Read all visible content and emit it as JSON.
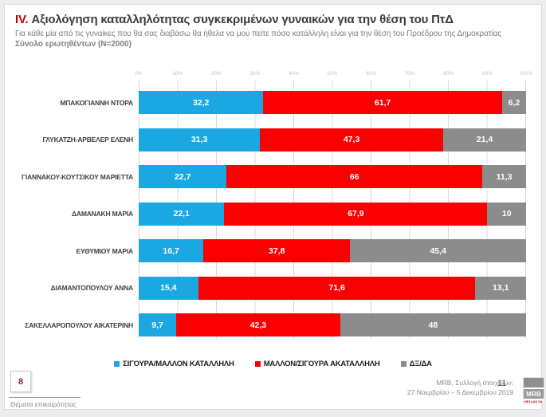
{
  "title": {
    "roman": "IV.",
    "text": "Αξιολόγηση καταλληλότητας συγκεκριμένων γυναικών για την θέση του ΠτΔ"
  },
  "subtitle": "Για κάθε μία από τις γυναίκες που θα σας διαβάσω θα ήθελα να μου πείτε πόσο κατάλληλη είναι για την θέση του Προέδρου της Δημοκρατίας",
  "base_line": "Σύνολο ερωτηθέντων (N=2000)",
  "colors": {
    "suitable_blue": "#1BA7E1",
    "unsuitable_red": "#FB0000",
    "dk_gray": "#8C8C8C",
    "accent_red": "#C00000",
    "grid_gray": "#D9D9D9"
  },
  "chart_data": {
    "type": "bar",
    "orientation": "horizontal",
    "stacked": true,
    "grid": true,
    "legend_position": "bottom",
    "xlim": [
      0,
      100
    ],
    "x_ticks": [
      "0%",
      "10%",
      "20%",
      "30%",
      "40%",
      "50%",
      "60%",
      "70%",
      "80%",
      "90%",
      "100%"
    ],
    "categories": [
      "ΜΠΑΚΟΓΙΑΝΝΗ ΝΤΟΡΑ",
      "ΓΛΥΚΑΤΖΗ-ΑΡΒΕΛΕΡ ΕΛΕΝΗ",
      "ΓΙΑΝΝΑΚΟΥ-ΚΟΥΤΣΙΚΟΥ ΜΑΡΙΕΤΤΑ",
      "ΔΑΜΑΝΑΚΗ ΜΑΡΙΑ",
      "ΕΥΘΥΜΙΟΥ ΜΑΡΙΑ",
      "ΔΙΑΜΑΝΤΟΠΟΥΛΟΥ ΑΝΝΑ",
      "ΣΑΚΕΛΛΑΡΟΠΟΥΛΟΥ ΑΙΚΑΤΕΡΙΝΗ"
    ],
    "series": [
      {
        "name": "ΣΙΓΟΥΡΑ/ΜΑΛΛΟΝ ΚΑΤΑΛΛΗΛΗ",
        "color": "#1BA7E1",
        "values": [
          32.2,
          31.3,
          22.7,
          22.1,
          16.7,
          15.4,
          9.7
        ],
        "labels": [
          "32,2",
          "31,3",
          "22,7",
          "22,1",
          "16,7",
          "15,4",
          "9,7"
        ]
      },
      {
        "name": "ΜΑΛΛΟΝ/ΣΙΓΟΥΡΑ ΑΚΑΤΑΛΛΗΛΗ",
        "color": "#FB0000",
        "values": [
          61.7,
          47.3,
          66,
          67.9,
          37.8,
          71.6,
          42.3
        ],
        "labels": [
          "61,7",
          "47,3",
          "66",
          "67,9",
          "37,8",
          "71,6",
          "42,3"
        ]
      },
      {
        "name": "ΔΞ/ΔΑ",
        "color": "#8C8C8C",
        "values": [
          6.2,
          21.4,
          11.3,
          10,
          45.4,
          13.1,
          48
        ],
        "labels": [
          "6,2",
          "21,4",
          "11,3",
          "10",
          "45,4",
          "13,1",
          "48"
        ]
      }
    ]
  },
  "footer": {
    "page_box": "8",
    "section": "Θέματα επικαιρότητας",
    "source_line1": "MRB, Συλλογή στοιχείων:",
    "source_line2": "27 Νοεμβρίου – 5 Δεκεμβρίου 2019",
    "page_number": "11",
    "logo_text": "MRB",
    "logo_sub": "HELLAS SA"
  }
}
